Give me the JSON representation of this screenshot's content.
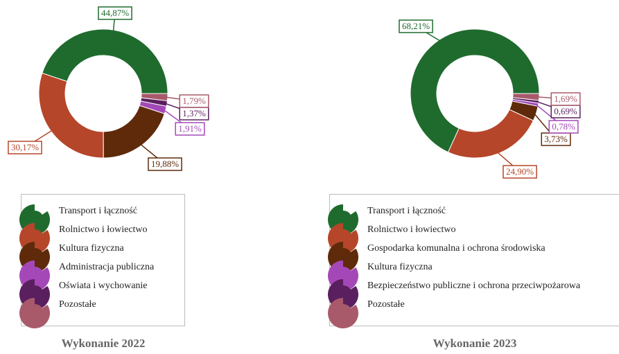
{
  "chart_data": [
    {
      "type": "pie",
      "hole": true,
      "title": "Wykonanie 2022",
      "categories": [
        "Transport i łączność",
        "Rolnictwo i łowiectwo",
        "Kultura fizyczna",
        "Administracja publiczna",
        "Oświata i wychowanie",
        "Pozostałe"
      ],
      "values": [
        44.87,
        30.17,
        19.88,
        1.91,
        1.37,
        1.79
      ],
      "value_labels": [
        "44,87%",
        "30,17%",
        "19,88%",
        "1,91%",
        "1,37%",
        "1,79%"
      ],
      "colors": [
        "#1f6b2e",
        "#b5462a",
        "#5e2a0a",
        "#a448b8",
        "#5a1f5e",
        "#a85a6a"
      ]
    },
    {
      "type": "pie",
      "hole": true,
      "title": "Wykonanie 2023",
      "categories": [
        "Transport i łączność",
        "Rolnictwo i łowiectwo",
        "Gospodarka komunalna i ochrona środowiska",
        "Kultura fizyczna",
        "Bezpieczeństwo publiczne i ochrona przeciwpożarowa",
        "Pozostałe"
      ],
      "values": [
        68.21,
        24.9,
        3.73,
        0.78,
        0.69,
        1.69
      ],
      "value_labels": [
        "68,21%",
        "24,90%",
        "3,73%",
        "0,78%",
        "0,69%",
        "1,69%"
      ],
      "colors": [
        "#1f6b2e",
        "#b5462a",
        "#5e2a0a",
        "#a448b8",
        "#5a1f5e",
        "#a85a6a"
      ]
    }
  ]
}
